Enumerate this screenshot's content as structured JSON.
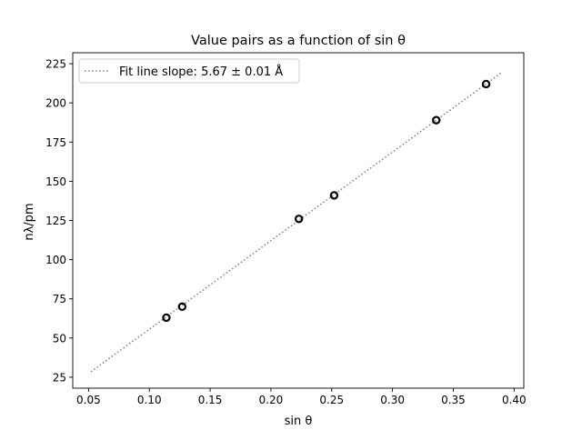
{
  "chart_data": {
    "type": "scatter",
    "title": "Value pairs as a function of sin θ",
    "xlabel": "sin θ",
    "ylabel": "nλ/pm",
    "xlim": [
      0.037,
      0.408
    ],
    "ylim": [
      18,
      232
    ],
    "x_ticks": [
      0.05,
      0.1,
      0.15,
      0.2,
      0.25,
      0.3,
      0.35,
      0.4
    ],
    "x_tick_labels": [
      "0.05",
      "0.10",
      "0.15",
      "0.20",
      "0.25",
      "0.30",
      "0.35",
      "0.40"
    ],
    "y_ticks": [
      25,
      50,
      75,
      100,
      125,
      150,
      175,
      200,
      225
    ],
    "y_tick_labels": [
      "25",
      "50",
      "75",
      "100",
      "125",
      "150",
      "175",
      "200",
      "225"
    ],
    "grid": false,
    "legend_position": "top-left",
    "legend_label": "Fit line slope: 5.67 ± 0.01 Å",
    "series": [
      {
        "type": "scatter",
        "marker": "open-circle",
        "color": "#000000",
        "x": [
          0.114,
          0.127,
          0.223,
          0.252,
          0.336,
          0.377
        ],
        "y": [
          63,
          70,
          126,
          141,
          189,
          212
        ]
      },
      {
        "type": "line",
        "style": "dotted",
        "color": "#808080",
        "x": [
          0.052,
          0.39
        ],
        "y": [
          28.5,
          219.5
        ]
      }
    ]
  }
}
